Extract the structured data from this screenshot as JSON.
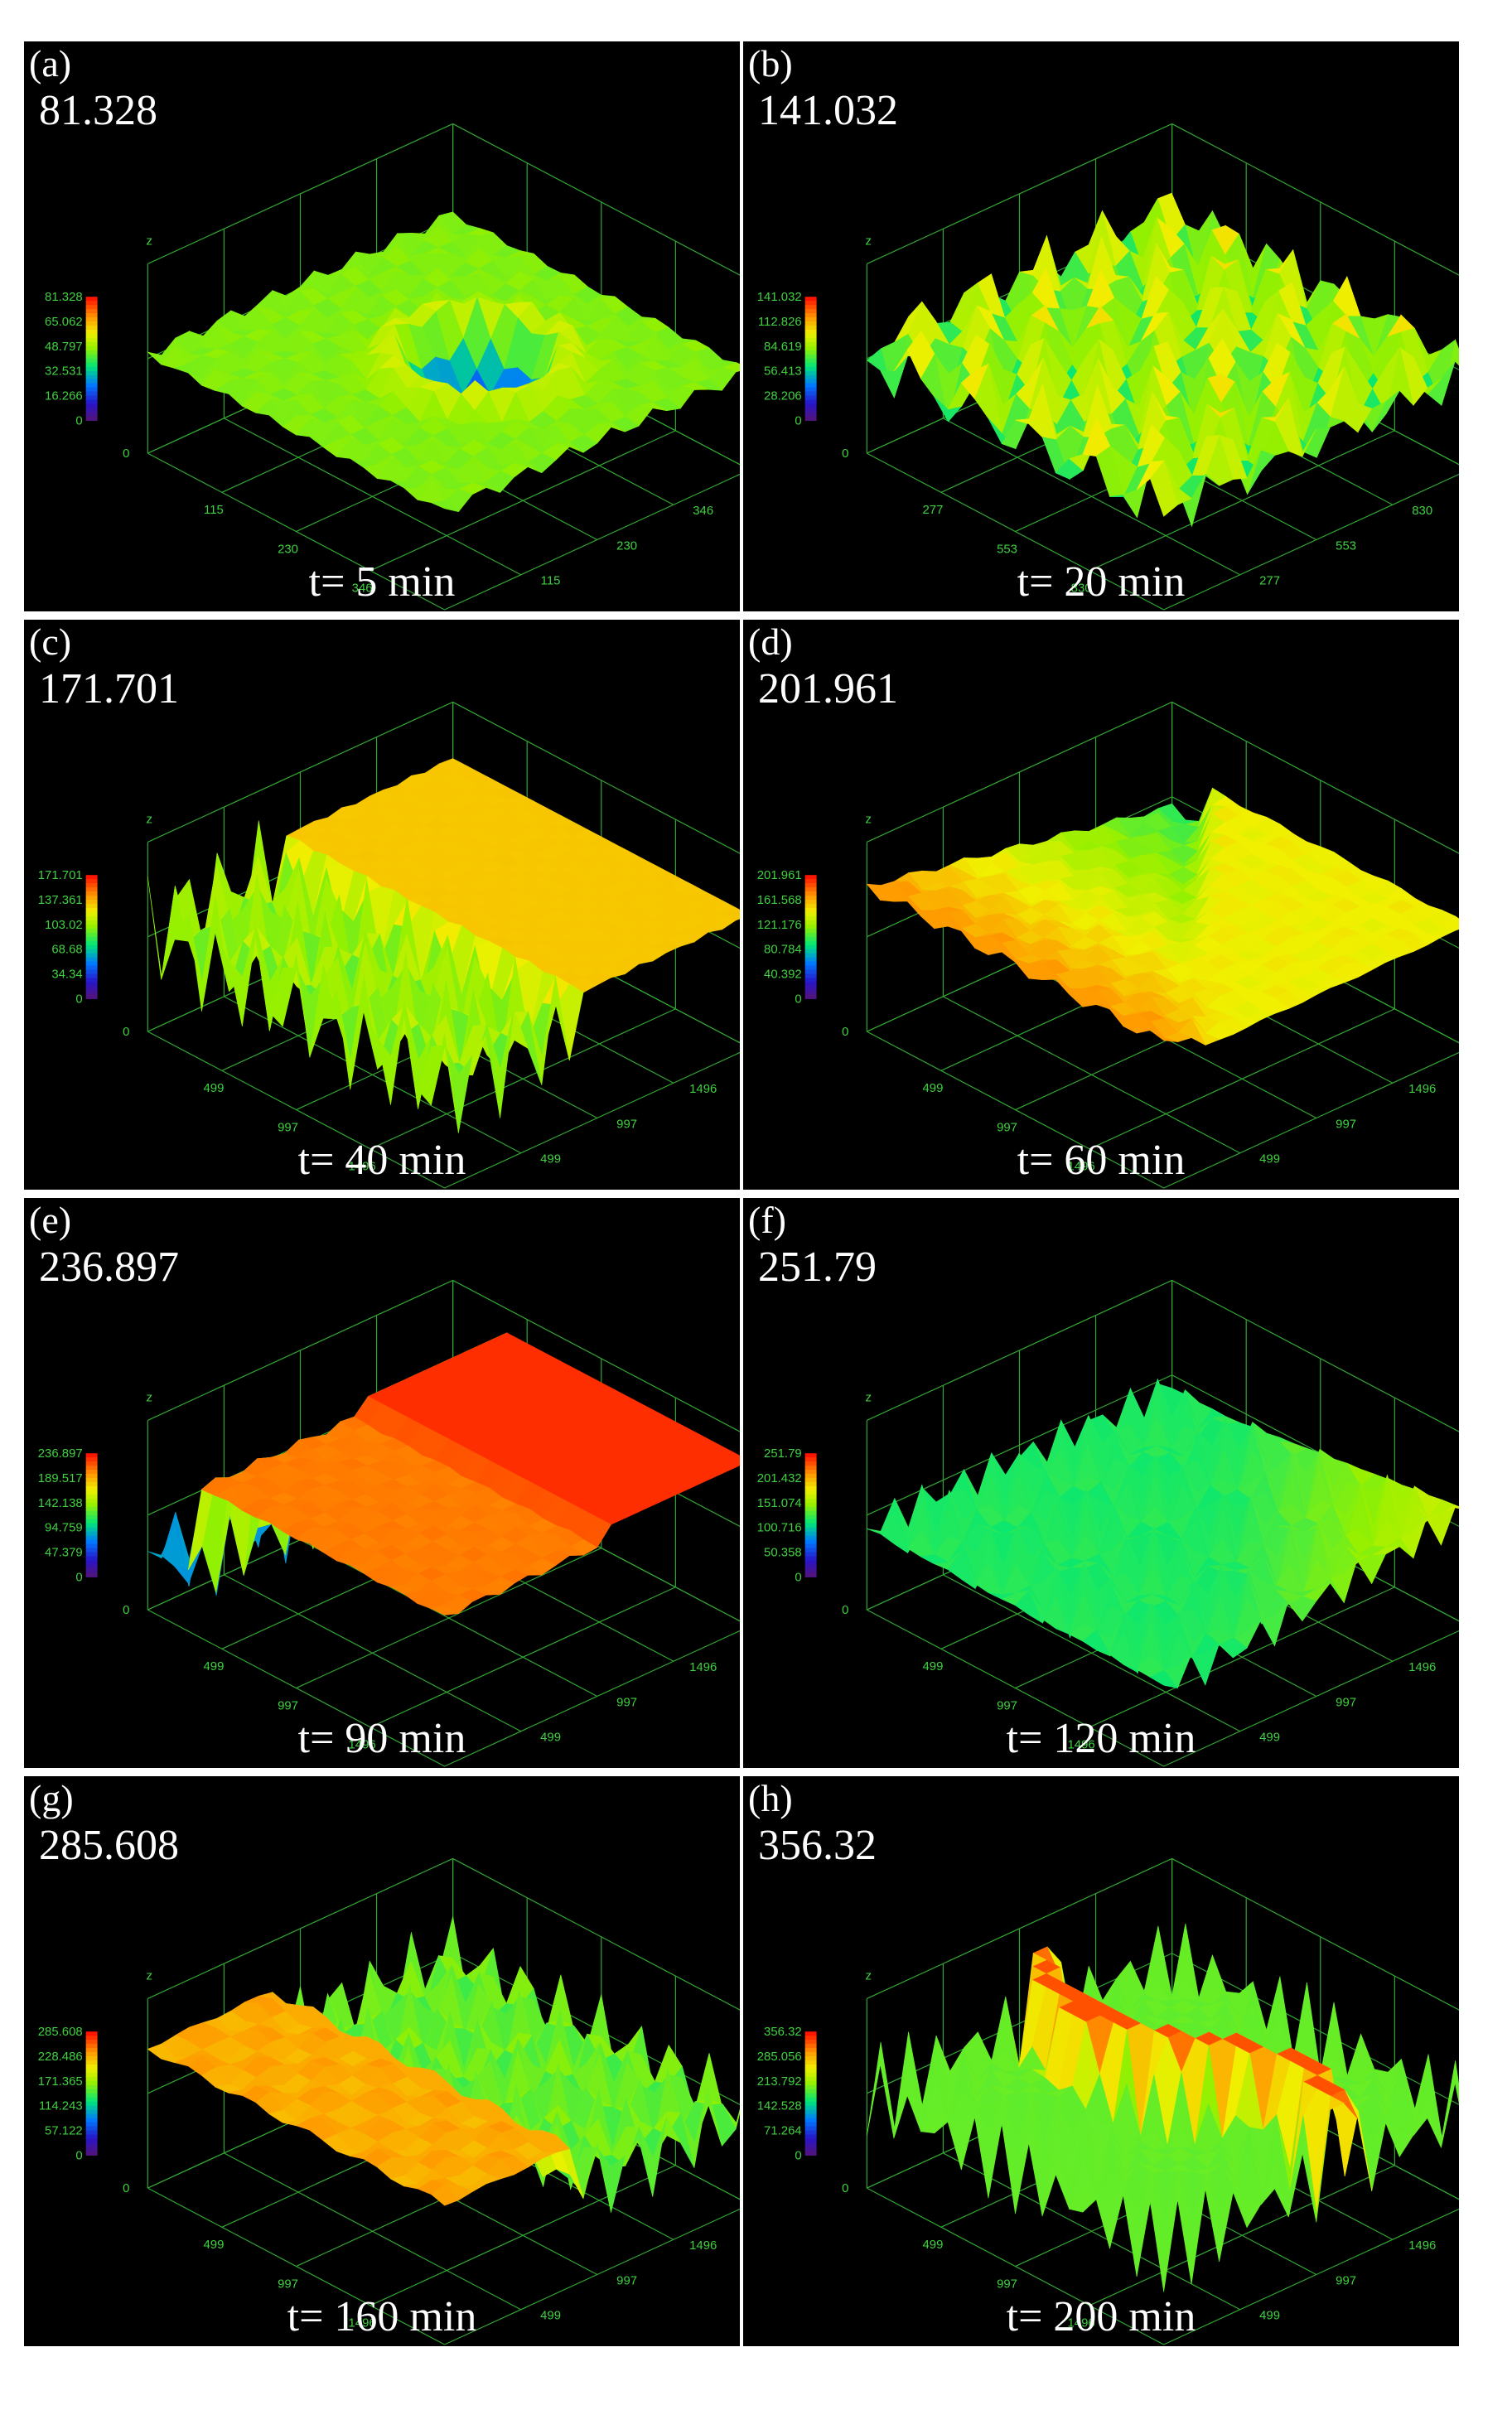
{
  "chart_data": [
    {
      "type": "surface3d",
      "panel": "(a)",
      "max_label": "81.328",
      "time_label": "t= 5 min",
      "z_ticks": [
        "0",
        "40.664",
        "81.328"
      ],
      "legend_ticks": [
        "81.328",
        "65.062",
        "48.797",
        "32.531",
        "16.266",
        "0"
      ],
      "x_ticks": [
        "115",
        "230",
        "346",
        "461"
      ],
      "y_ticks": [
        "115",
        "230",
        "346",
        "461"
      ],
      "x_axis": "x",
      "z_axis": "z",
      "zmax": 81.328,
      "colormap": "rainbow",
      "feature": "central-pit"
    },
    {
      "type": "surface3d",
      "panel": "(b)",
      "max_label": "141.032",
      "time_label": "t= 20 min",
      "z_ticks": [
        "0",
        "70.516",
        "141.032"
      ],
      "legend_ticks": [
        "141.032",
        "112.826",
        "84.619",
        "56.413",
        "28.206",
        "0"
      ],
      "x_ticks": [
        "277",
        "553",
        "830",
        "1106"
      ],
      "y_ticks": [
        "277",
        "553",
        "830",
        "1106"
      ],
      "x_axis": "x",
      "z_axis": "z",
      "zmax": 141.032,
      "colormap": "rainbow",
      "feature": "many-peaks"
    },
    {
      "type": "surface3d",
      "panel": "(c)",
      "max_label": "171.701",
      "time_label": "t= 40 min",
      "z_ticks": [
        "0",
        "85.85",
        "171.701"
      ],
      "legend_ticks": [
        "171.701",
        "137.361",
        "103.02",
        "68.68",
        "34.34",
        "0"
      ],
      "x_ticks": [
        "499",
        "997",
        "1496",
        "1994"
      ],
      "y_ticks": [
        "499",
        "997",
        "1496",
        "1994"
      ],
      "x_axis": "x",
      "z_axis": "z",
      "zmax": 171.701,
      "colormap": "rainbow",
      "feature": "yellow-plateau"
    },
    {
      "type": "surface3d",
      "panel": "(d)",
      "max_label": "201.961",
      "time_label": "t= 60 min",
      "z_ticks": [
        "0",
        "100.98",
        "201.961"
      ],
      "legend_ticks": [
        "201.961",
        "161.568",
        "121.176",
        "80.784",
        "40.392",
        "0"
      ],
      "x_ticks": [
        "499",
        "997",
        "1496",
        "1994"
      ],
      "y_ticks": [
        "499",
        "997",
        "1496",
        "1994"
      ],
      "x_axis": "x",
      "z_axis": "z",
      "zmax": 201.961,
      "colormap": "rainbow",
      "feature": "split-plateau"
    },
    {
      "type": "surface3d",
      "panel": "(e)",
      "max_label": "236.897",
      "time_label": "t= 90 min",
      "z_ticks": [
        "0",
        "118.448",
        "236.897"
      ],
      "legend_ticks": [
        "236.897",
        "189.517",
        "142.138",
        "94.759",
        "47.379",
        "0"
      ],
      "x_ticks": [
        "499",
        "997",
        "1496",
        "1994"
      ],
      "y_ticks": [
        "499",
        "997",
        "1496",
        "1994"
      ],
      "x_axis": "x",
      "z_axis": "z",
      "zmax": 236.897,
      "colormap": "rainbow",
      "feature": "red-plateau"
    },
    {
      "type": "surface3d",
      "panel": "(f)",
      "max_label": "251.79",
      "time_label": "t= 120 min",
      "z_ticks": [
        "0",
        "125.895",
        "251.79"
      ],
      "legend_ticks": [
        "251.79",
        "201.432",
        "151.074",
        "100.716",
        "50.358",
        "0"
      ],
      "x_ticks": [
        "499",
        "997",
        "1496",
        "1994"
      ],
      "y_ticks": [
        "499",
        "997",
        "1496",
        "1994"
      ],
      "x_axis": "x",
      "z_axis": "z",
      "zmax": 251.79,
      "colormap": "rainbow",
      "feature": "green-rough"
    },
    {
      "type": "surface3d",
      "panel": "(g)",
      "max_label": "285.608",
      "time_label": "t= 160 min",
      "z_ticks": [
        "0",
        "142.804",
        "285.608"
      ],
      "legend_ticks": [
        "285.608",
        "228.486",
        "171.365",
        "114.243",
        "57.122",
        "0"
      ],
      "x_ticks": [
        "499",
        "997",
        "1496",
        "1994"
      ],
      "y_ticks": [
        "499",
        "997",
        "1496",
        "1994"
      ],
      "x_axis": "x",
      "z_axis": "z",
      "zmax": 285.608,
      "colormap": "rainbow",
      "feature": "orange-ridge"
    },
    {
      "type": "surface3d",
      "panel": "(h)",
      "max_label": "356.32",
      "time_label": "t= 200 min",
      "z_ticks": [
        "0",
        "178.16",
        "356.32"
      ],
      "legend_ticks": [
        "356.32",
        "285.056",
        "213.792",
        "142.528",
        "71.264",
        "0"
      ],
      "x_ticks": [
        "499",
        "997",
        "1496",
        "1994"
      ],
      "y_ticks": [
        "499",
        "997",
        "1496",
        "1994"
      ],
      "x_axis": "x",
      "z_axis": "z",
      "zmax": 356.32,
      "colormap": "rainbow",
      "feature": "red-ring"
    }
  ],
  "colors": {
    "background": "#000000",
    "axis": "#3fd13f",
    "text": "#ffffff"
  }
}
